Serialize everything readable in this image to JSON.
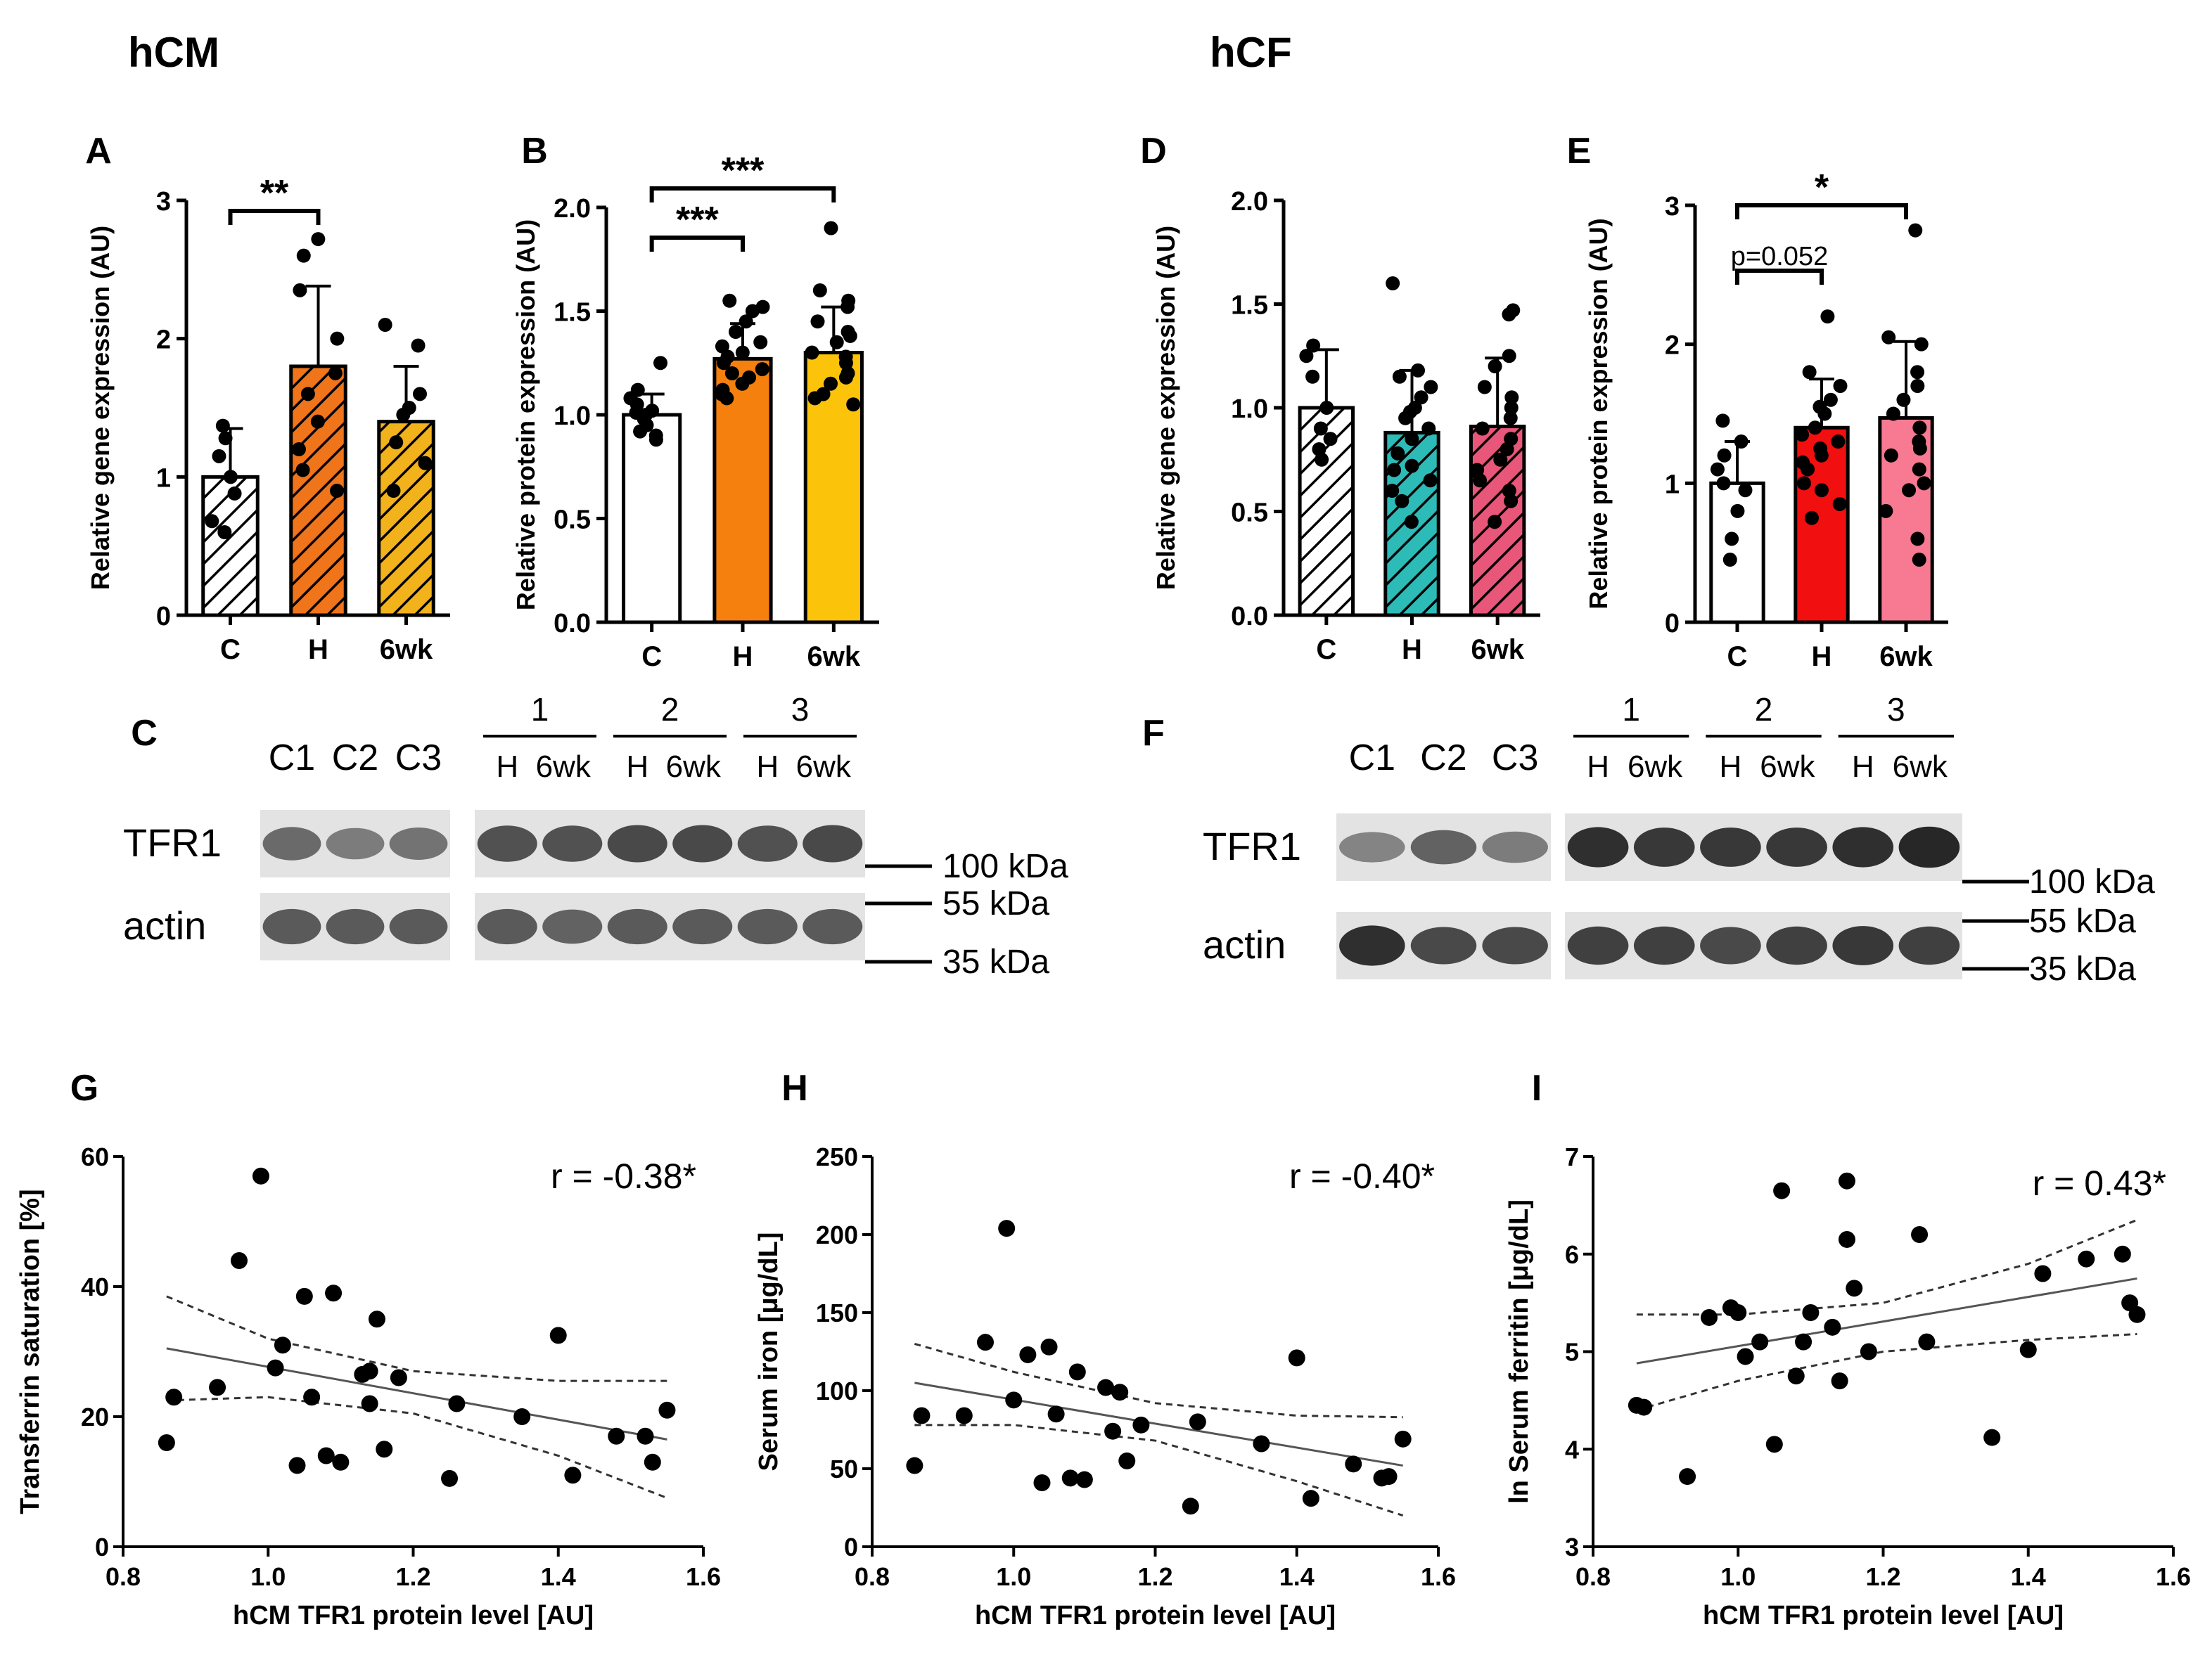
{
  "section_titles": {
    "left": "hCM",
    "right": "hCF"
  },
  "chart_data": [
    {
      "panel": "A",
      "type": "bar",
      "pattern": "hatched",
      "ylabel": "Relative gene expression (AU)",
      "categories": [
        "C",
        "H",
        "6wk"
      ],
      "ylim": [
        0,
        3
      ],
      "yticks": [
        "0",
        "1",
        "2",
        "3"
      ],
      "colors": [
        "#ffffff",
        "#f0741a",
        "#f2b21c"
      ],
      "values": [
        1.0,
        1.8,
        1.4
      ],
      "sd": [
        0.35,
        0.58,
        0.4
      ],
      "points": [
        [
          0.68,
          0.88,
          1.15,
          1.28,
          1.37,
          0.6,
          1.0
        ],
        [
          0.9,
          1.05,
          1.2,
          1.4,
          1.6,
          2.0,
          2.35,
          2.6,
          2.72,
          1.75
        ],
        [
          0.9,
          1.1,
          1.25,
          1.45,
          1.6,
          1.95,
          2.1,
          1.5
        ]
      ],
      "significance": [
        {
          "from": 0,
          "to": 1,
          "label": "**"
        }
      ]
    },
    {
      "panel": "B",
      "type": "bar",
      "pattern": "solid",
      "ylabel": "Relative protein expression (AU)",
      "categories": [
        "C",
        "H",
        "6wk"
      ],
      "ylim": [
        0,
        2
      ],
      "yticks": [
        "0.0",
        "0.5",
        "1.0",
        "1.5",
        "2.0"
      ],
      "colors": [
        "#ffffff",
        "#f5800e",
        "#fcc30b"
      ],
      "values": [
        1.0,
        1.27,
        1.3
      ],
      "sd": [
        0.1,
        0.17,
        0.22
      ],
      "points": [
        [
          0.88,
          0.92,
          0.95,
          0.98,
          1.0,
          1.02,
          1.05,
          1.08,
          1.12,
          0.9,
          1.01,
          1.25
        ],
        [
          1.08,
          1.12,
          1.15,
          1.2,
          1.22,
          1.25,
          1.28,
          1.3,
          1.35,
          1.4,
          1.45,
          1.5,
          1.52,
          1.55,
          1.18,
          1.33,
          1.1
        ],
        [
          1.05,
          1.1,
          1.15,
          1.2,
          1.25,
          1.3,
          1.35,
          1.4,
          1.45,
          1.52,
          1.55,
          1.6,
          1.9,
          1.18,
          1.28,
          1.38,
          1.08
        ]
      ],
      "significance": [
        {
          "from": 0,
          "to": 1,
          "label": "***"
        },
        {
          "from": 0,
          "to": 2,
          "label": "***"
        }
      ]
    },
    {
      "panel": "D",
      "type": "bar",
      "pattern": "hatched",
      "ylabel": "Relative gene expression (AU)",
      "categories": [
        "C",
        "H",
        "6wk"
      ],
      "ylim": [
        0,
        2
      ],
      "yticks": [
        "0.0",
        "0.5",
        "1.0",
        "1.5",
        "2.0"
      ],
      "colors": [
        "#ffffff",
        "#2dbbb8",
        "#e8567a"
      ],
      "values": [
        1.0,
        0.88,
        0.91
      ],
      "sd": [
        0.28,
        0.3,
        0.33
      ],
      "points": [
        [
          0.75,
          0.8,
          0.9,
          1.0,
          1.15,
          1.25,
          1.3,
          0.85
        ],
        [
          0.45,
          0.55,
          0.65,
          0.7,
          0.78,
          0.85,
          0.9,
          0.95,
          1.0,
          1.05,
          1.1,
          1.15,
          1.18,
          1.6,
          0.6,
          0.72,
          0.98
        ],
        [
          0.45,
          0.55,
          0.6,
          0.7,
          0.75,
          0.85,
          0.9,
          0.95,
          1.0,
          1.1,
          1.2,
          1.25,
          1.45,
          1.47,
          0.65,
          0.8,
          1.05
        ]
      ],
      "significance": []
    },
    {
      "panel": "E",
      "type": "bar",
      "pattern": "solid",
      "ylabel": "Relative protein expression (AU)",
      "categories": [
        "C",
        "H",
        "6wk"
      ],
      "ylim": [
        0,
        3
      ],
      "yticks": [
        "0",
        "1",
        "2",
        "3"
      ],
      "colors": [
        "#ffffff",
        "#f20f0f",
        "#f77a92"
      ],
      "values": [
        1.0,
        1.4,
        1.47
      ],
      "sd": [
        0.3,
        0.35,
        0.55
      ],
      "points": [
        [
          0.45,
          0.6,
          0.8,
          1.0,
          1.1,
          1.2,
          1.3,
          1.45,
          0.95
        ],
        [
          0.75,
          0.85,
          1.0,
          1.1,
          1.2,
          1.3,
          1.4,
          1.5,
          1.6,
          1.7,
          1.8,
          2.2,
          1.15,
          1.35,
          0.95,
          1.55,
          1.25
        ],
        [
          0.45,
          0.6,
          0.8,
          0.95,
          1.1,
          1.2,
          1.3,
          1.4,
          1.5,
          1.6,
          1.7,
          1.8,
          2.0,
          2.05,
          2.82,
          1.25,
          1.0
        ]
      ],
      "significance": [
        {
          "from": 0,
          "to": 1,
          "label": "p=0.052"
        },
        {
          "from": 0,
          "to": 2,
          "label": "*"
        }
      ]
    },
    {
      "panel": "G",
      "type": "scatter",
      "xlabel": "hCM TFR1 protein level [AU]",
      "ylabel": "Transferrin saturation [%]",
      "xlim": [
        0.8,
        1.6
      ],
      "ylim": [
        0,
        60
      ],
      "xticks": [
        "0.8",
        "1.0",
        "1.2",
        "1.4",
        "1.6"
      ],
      "yticks": [
        "0",
        "20",
        "40",
        "60"
      ],
      "annotation": "r = -0.38*",
      "x": [
        0.86,
        0.87,
        0.93,
        0.96,
        0.99,
        1.01,
        1.02,
        1.04,
        1.05,
        1.06,
        1.08,
        1.09,
        1.1,
        1.13,
        1.14,
        1.14,
        1.15,
        1.16,
        1.18,
        1.25,
        1.26,
        1.35,
        1.4,
        1.42,
        1.48,
        1.52,
        1.53,
        1.55
      ],
      "y": [
        16,
        23,
        24.5,
        44,
        57,
        27.5,
        31,
        12.5,
        38.5,
        23,
        14,
        39,
        13,
        26.5,
        22,
        27,
        35,
        15,
        26,
        10.5,
        22,
        20,
        32.5,
        11,
        17,
        17,
        13,
        21
      ],
      "fit": {
        "x": [
          0.86,
          1.55
        ],
        "y": [
          30.5,
          16.5
        ]
      },
      "ci_upper": {
        "x": [
          0.86,
          1.0,
          1.2,
          1.4,
          1.55
        ],
        "y": [
          38.5,
          32,
          27,
          25.5,
          25.5
        ]
      },
      "ci_lower": {
        "x": [
          0.86,
          1.0,
          1.2,
          1.4,
          1.55
        ],
        "y": [
          22.5,
          23,
          20.5,
          14,
          7.5
        ]
      }
    },
    {
      "panel": "H",
      "type": "scatter",
      "xlabel": "hCM TFR1 protein level [AU]",
      "ylabel": "Serum iron [μg/dL]",
      "xlim": [
        0.8,
        1.6
      ],
      "ylim": [
        0,
        250
      ],
      "xticks": [
        "0.8",
        "1.0",
        "1.2",
        "1.4",
        "1.6"
      ],
      "yticks": [
        "0",
        "50",
        "100",
        "150",
        "200",
        "250"
      ],
      "annotation": "r = -0.40*",
      "x": [
        0.86,
        0.87,
        0.93,
        0.96,
        0.99,
        1.0,
        1.02,
        1.04,
        1.05,
        1.06,
        1.08,
        1.09,
        1.1,
        1.13,
        1.14,
        1.15,
        1.16,
        1.18,
        1.25,
        1.26,
        1.35,
        1.4,
        1.42,
        1.48,
        1.52,
        1.53,
        1.55
      ],
      "y": [
        52,
        84,
        84,
        131,
        204,
        94,
        123,
        41,
        128,
        85,
        44,
        112,
        43,
        102,
        74,
        99,
        55,
        78,
        26,
        80,
        66,
        121,
        31,
        53,
        44,
        45,
        69
      ],
      "fit": {
        "x": [
          0.86,
          1.55
        ],
        "y": [
          105,
          52
        ]
      },
      "ci_upper": {
        "x": [
          0.86,
          1.0,
          1.2,
          1.4,
          1.55
        ],
        "y": [
          130,
          112,
          92,
          84,
          83
        ]
      },
      "ci_lower": {
        "x": [
          0.86,
          1.0,
          1.2,
          1.4,
          1.55
        ],
        "y": [
          78,
          78,
          68,
          42,
          20
        ]
      }
    },
    {
      "panel": "I",
      "type": "scatter",
      "xlabel": "hCM TFR1 protein level [AU]",
      "ylabel": "ln Serum ferritin [μg/dL]",
      "xlim": [
        0.8,
        1.6
      ],
      "ylim": [
        3,
        7
      ],
      "xticks": [
        "0.8",
        "1.0",
        "1.2",
        "1.4",
        "1.6"
      ],
      "yticks": [
        "3",
        "4",
        "5",
        "6",
        "7"
      ],
      "annotation": "r = 0.43*",
      "x": [
        0.86,
        0.87,
        0.93,
        0.96,
        0.99,
        1.0,
        1.01,
        1.03,
        1.05,
        1.06,
        1.08,
        1.09,
        1.1,
        1.13,
        1.14,
        1.15,
        1.15,
        1.16,
        1.18,
        1.25,
        1.26,
        1.35,
        1.4,
        1.42,
        1.48,
        1.53,
        1.54,
        1.55
      ],
      "y": [
        4.45,
        4.43,
        3.72,
        5.35,
        5.45,
        5.4,
        4.95,
        5.1,
        4.05,
        6.65,
        4.75,
        5.1,
        5.4,
        5.25,
        4.7,
        6.15,
        6.75,
        5.65,
        5.0,
        6.2,
        5.1,
        4.12,
        5.02,
        5.8,
        5.95,
        6.0,
        5.5,
        5.38
      ],
      "fit": {
        "x": [
          0.86,
          1.55
        ],
        "y": [
          4.88,
          5.75
        ]
      },
      "ci_upper": {
        "x": [
          0.86,
          1.0,
          1.2,
          1.4,
          1.55
        ],
        "y": [
          5.38,
          5.38,
          5.5,
          5.9,
          6.35
        ]
      },
      "ci_lower": {
        "x": [
          0.86,
          1.0,
          1.2,
          1.4,
          1.55
        ],
        "y": [
          4.4,
          4.7,
          5.0,
          5.12,
          5.18
        ]
      }
    }
  ],
  "blots": [
    {
      "panel": "C",
      "groups": [
        {
          "label": "1",
          "lanes": [
            "H",
            "6wk"
          ]
        },
        {
          "label": "2",
          "lanes": [
            "H",
            "6wk"
          ]
        },
        {
          "label": "3",
          "lanes": [
            "H",
            "6wk"
          ]
        }
      ],
      "control_lanes": [
        "C1",
        "C2",
        "C3"
      ],
      "rows": [
        {
          "label": "TFR1",
          "intensity": [
            0.55,
            0.45,
            0.5,
            0.7,
            0.7,
            0.75,
            0.75,
            0.7,
            0.75
          ]
        },
        {
          "label": "actin",
          "intensity": [
            0.65,
            0.65,
            0.65,
            0.65,
            0.6,
            0.65,
            0.65,
            0.65,
            0.65
          ]
        }
      ],
      "markers": [
        "100 kDa",
        "55 kDa",
        "35 kDa"
      ]
    },
    {
      "panel": "F",
      "groups": [
        {
          "label": "1",
          "lanes": [
            "H",
            "6wk"
          ]
        },
        {
          "label": "2",
          "lanes": [
            "H",
            "6wk"
          ]
        },
        {
          "label": "3",
          "lanes": [
            "H",
            "6wk"
          ]
        }
      ],
      "control_lanes": [
        "C1",
        "C2",
        "C3"
      ],
      "rows": [
        {
          "label": "TFR1",
          "intensity": [
            0.4,
            0.6,
            0.45,
            0.9,
            0.85,
            0.85,
            0.85,
            0.9,
            0.95
          ]
        },
        {
          "label": "actin",
          "intensity": [
            0.9,
            0.75,
            0.75,
            0.8,
            0.8,
            0.75,
            0.8,
            0.85,
            0.8
          ]
        }
      ],
      "markers": [
        "100 kDa",
        "55 kDa",
        "35 kDa"
      ]
    }
  ]
}
